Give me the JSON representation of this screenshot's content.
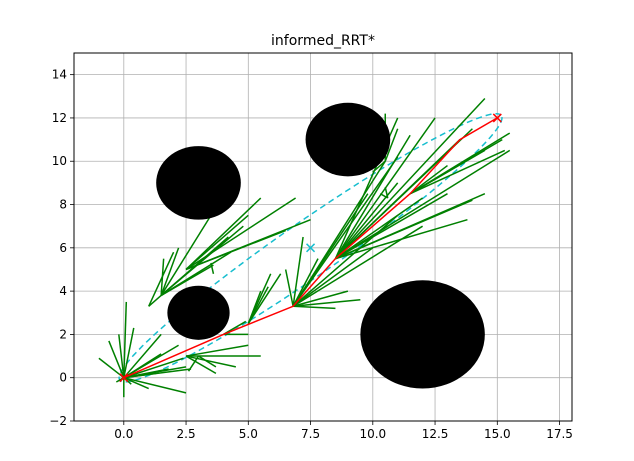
{
  "chart_data": {
    "type": "line",
    "title": "informed_RRT*",
    "xlabel": "",
    "ylabel": "",
    "xlim": [
      -2,
      18
    ],
    "ylim": [
      -2,
      15
    ],
    "xticks": [
      0.0,
      2.5,
      5.0,
      7.5,
      10.0,
      12.5,
      15.0,
      17.5
    ],
    "xtick_labels": [
      "0.0",
      "2.5",
      "5.0",
      "7.5",
      "10.0",
      "12.5",
      "15.0",
      "17.5"
    ],
    "yticks": [
      -2,
      0,
      2,
      4,
      6,
      8,
      10,
      12,
      14
    ],
    "ytick_labels": [
      "−2",
      "0",
      "2",
      "4",
      "6",
      "8",
      "10",
      "12",
      "14"
    ],
    "grid": true,
    "colors": {
      "tree": "#008000",
      "path": "#ff0000",
      "ellipse": "#17becf",
      "obstacle": "#000000",
      "grid": "#b0b0b0"
    },
    "start": [
      0,
      0
    ],
    "goal": [
      15,
      12
    ],
    "ellipse_center": [
      7.5,
      6.0
    ],
    "ellipse_semi_axes": [
      9.8,
      1.2
    ],
    "ellipse_angle_deg": 38.66,
    "obstacles": [
      {
        "cx": 3.0,
        "cy": 9.0,
        "r": 1.7
      },
      {
        "cx": 9.0,
        "cy": 11.0,
        "r": 1.7
      },
      {
        "cx": 3.0,
        "cy": 3.0,
        "r": 1.25
      },
      {
        "cx": 12.0,
        "cy": 2.0,
        "r": 2.5
      }
    ],
    "path": [
      [
        0,
        0
      ],
      [
        2,
        1
      ],
      [
        4,
        2
      ],
      [
        6.8,
        3.3
      ],
      [
        8.5,
        5.5
      ],
      [
        11.5,
        8.5
      ],
      [
        13.5,
        11
      ],
      [
        15,
        12
      ]
    ],
    "tree_edges": [
      [
        [
          0,
          0
        ],
        [
          -1,
          0.9
        ]
      ],
      [
        [
          0,
          0
        ],
        [
          -0.6,
          1.7
        ]
      ],
      [
        [
          0,
          0
        ],
        [
          -0.2,
          2
        ]
      ],
      [
        [
          0,
          0
        ],
        [
          0.1,
          3.5
        ]
      ],
      [
        [
          0,
          0
        ],
        [
          0.4,
          2.3
        ]
      ],
      [
        [
          0,
          0
        ],
        [
          0,
          -0.9
        ]
      ],
      [
        [
          0,
          0
        ],
        [
          -0.3,
          -0.2
        ]
      ],
      [
        [
          0,
          0
        ],
        [
          1.5,
          2
        ]
      ],
      [
        [
          0,
          0
        ],
        [
          1.5,
          1.1
        ]
      ],
      [
        [
          0,
          0
        ],
        [
          2.5,
          0.5
        ]
      ],
      [
        [
          0,
          0
        ],
        [
          2.2,
          1.5
        ]
      ],
      [
        [
          0,
          0
        ],
        [
          2.5,
          -0.7
        ]
      ],
      [
        [
          0,
          0
        ],
        [
          1.8,
          0.4
        ]
      ],
      [
        [
          0,
          0
        ],
        [
          2.7,
          0.4
        ]
      ],
      [
        [
          0,
          0
        ],
        [
          1.3,
          0.2
        ]
      ],
      [
        [
          0,
          0
        ],
        [
          2.4,
          0.9
        ]
      ],
      [
        [
          0,
          0
        ],
        [
          0.3,
          -0.3
        ]
      ],
      [
        [
          0,
          0
        ],
        [
          1,
          -0.5
        ]
      ],
      [
        [
          1.5,
          3.8
        ],
        [
          2.2,
          6
        ]
      ],
      [
        [
          1.5,
          3.8
        ],
        [
          1.6,
          5.5
        ]
      ],
      [
        [
          1.5,
          3.8
        ],
        [
          3.5,
          7.5
        ]
      ],
      [
        [
          1.5,
          3.8
        ],
        [
          3.6,
          5.2
        ]
      ],
      [
        [
          1.5,
          3.8
        ],
        [
          4.2,
          6.5
        ]
      ],
      [
        [
          1.5,
          3.8
        ],
        [
          4.3,
          5.8
        ]
      ],
      [
        [
          1.5,
          3.8
        ],
        [
          4.8,
          7
        ]
      ],
      [
        [
          1,
          3.3
        ],
        [
          2,
          5.8
        ]
      ],
      [
        [
          1,
          3.3
        ],
        [
          1.5,
          3.8
        ]
      ],
      [
        [
          2.5,
          5
        ],
        [
          5.5,
          8.3
        ]
      ],
      [
        [
          2.5,
          5
        ],
        [
          5,
          7.5
        ]
      ],
      [
        [
          2.5,
          5
        ],
        [
          6.5,
          6.8
        ]
      ],
      [
        [
          2.5,
          5
        ],
        [
          7.5,
          7.3
        ]
      ],
      [
        [
          2.5,
          5
        ],
        [
          6.9,
          8.3
        ]
      ],
      [
        [
          3.5,
          5.3
        ],
        [
          3.6,
          4.8
        ]
      ],
      [
        [
          2.5,
          1
        ],
        [
          5.5,
          1
        ]
      ],
      [
        [
          2.5,
          1
        ],
        [
          5,
          1.5
        ]
      ],
      [
        [
          2.5,
          1
        ],
        [
          4.5,
          0.5
        ]
      ],
      [
        [
          2.5,
          1
        ],
        [
          3.7,
          0.2
        ]
      ],
      [
        [
          3,
          1
        ],
        [
          2.6,
          0.3
        ]
      ],
      [
        [
          3,
          1
        ],
        [
          3.7,
          0.5
        ]
      ],
      [
        [
          4,
          2
        ],
        [
          4.9,
          2.6
        ]
      ],
      [
        [
          4,
          2
        ],
        [
          5,
          2
        ]
      ],
      [
        [
          5,
          2.5
        ],
        [
          5.5,
          4
        ]
      ],
      [
        [
          5,
          2.5
        ],
        [
          5.9,
          4.8
        ]
      ],
      [
        [
          5,
          2.5
        ],
        [
          5.8,
          4.2
        ]
      ],
      [
        [
          5,
          2.5
        ],
        [
          6.3,
          4.8
        ]
      ],
      [
        [
          6.8,
          3.3
        ],
        [
          6.5,
          5
        ]
      ],
      [
        [
          6.8,
          3.3
        ],
        [
          7.2,
          6.5
        ]
      ],
      [
        [
          6.8,
          3.3
        ],
        [
          7.8,
          5.5
        ]
      ],
      [
        [
          6.8,
          3.3
        ],
        [
          9.5,
          3.6
        ]
      ],
      [
        [
          6.8,
          3.3
        ],
        [
          8.5,
          3.2
        ]
      ],
      [
        [
          6.8,
          3.3
        ],
        [
          9,
          4
        ]
      ],
      [
        [
          6.8,
          3.3
        ],
        [
          10,
          6
        ]
      ],
      [
        [
          6.8,
          3.3
        ],
        [
          11,
          7.5
        ]
      ],
      [
        [
          6.8,
          3.3
        ],
        [
          12,
          7
        ]
      ],
      [
        [
          6.8,
          3.3
        ],
        [
          9.8,
          8.5
        ]
      ],
      [
        [
          6.8,
          3.3
        ],
        [
          10.5,
          10
        ]
      ],
      [
        [
          6.8,
          3.3
        ],
        [
          11,
          10.2
        ]
      ],
      [
        [
          8.5,
          5.5
        ],
        [
          11,
          12
        ]
      ],
      [
        [
          8.5,
          5.5
        ],
        [
          11.5,
          11.2
        ]
      ],
      [
        [
          8.5,
          5.5
        ],
        [
          12.5,
          12
        ]
      ],
      [
        [
          8.5,
          5.5
        ],
        [
          13.5,
          11
        ]
      ],
      [
        [
          8.5,
          5.5
        ],
        [
          14,
          11.5
        ]
      ],
      [
        [
          8.5,
          5.5
        ],
        [
          14.5,
          12.9
        ]
      ],
      [
        [
          8.5,
          5.5
        ],
        [
          11,
          9
        ]
      ],
      [
        [
          8.5,
          5.5
        ],
        [
          13,
          8.5
        ]
      ],
      [
        [
          8.5,
          5.5
        ],
        [
          14,
          8.2
        ]
      ],
      [
        [
          8.5,
          5.5
        ],
        [
          14.5,
          8.5
        ]
      ],
      [
        [
          8.5,
          5.5
        ],
        [
          15.5,
          10.5
        ]
      ],
      [
        [
          8.5,
          5.5
        ],
        [
          13.8,
          7.3
        ]
      ],
      [
        [
          8.5,
          5.5
        ],
        [
          12,
          8.3
        ]
      ],
      [
        [
          8.5,
          5.5
        ],
        [
          10.6,
          7
        ]
      ],
      [
        [
          11.5,
          8.5
        ],
        [
          14.5,
          10.5
        ]
      ],
      [
        [
          11.5,
          8.5
        ],
        [
          15.2,
          11
        ]
      ],
      [
        [
          11.5,
          8.5
        ],
        [
          15.3,
          10.5
        ]
      ],
      [
        [
          11.5,
          8.5
        ],
        [
          15.5,
          11.3
        ]
      ],
      [
        [
          11.5,
          8.5
        ],
        [
          13,
          9.8
        ]
      ],
      [
        [
          10.5,
          10
        ],
        [
          10.5,
          12.2
        ]
      ],
      [
        [
          10.5,
          10
        ],
        [
          11,
          11.5
        ]
      ],
      [
        [
          10,
          9.5
        ],
        [
          10.5,
          10
        ]
      ],
      [
        [
          10.6,
          8.3
        ],
        [
          10.5,
          8.8
        ]
      ],
      [
        [
          10.3,
          8.5
        ],
        [
          10.6,
          8.3
        ]
      ]
    ]
  }
}
